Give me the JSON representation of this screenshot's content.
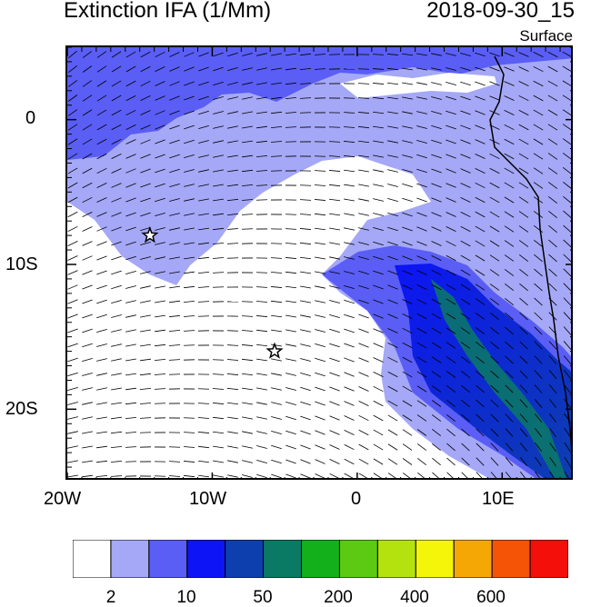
{
  "header": {
    "title": "Extinction IFA (1/Mm)",
    "timestamp": "2018-09-30_15",
    "level": "Surface"
  },
  "map": {
    "projection": "cylindrical-equidistant",
    "lon_range": [
      -20,
      15
    ],
    "lat_range": [
      -25,
      5
    ],
    "coastline_color": "#000000",
    "wind_vectors": "wind barbs overlay",
    "markers": [
      {
        "name": "star-marker",
        "lon": -14.3,
        "lat": -8.0
      },
      {
        "name": "star-marker",
        "lon": -5.7,
        "lat": -16.0
      }
    ]
  },
  "axes": {
    "x_ticks": [
      "20W",
      "10W",
      "0",
      "10E"
    ],
    "y_ticks": [
      "0",
      "10S",
      "20S"
    ]
  },
  "colorbar": {
    "colors": [
      "#ffffff",
      "#a5a8f6",
      "#5a5ef5",
      "#0d14f5",
      "#0d3fae",
      "#0a7a64",
      "#14b01c",
      "#5cca12",
      "#b4e20f",
      "#f5f50a",
      "#f5a805",
      "#f55305",
      "#f50f0a"
    ],
    "labels": [
      "2",
      "10",
      "50",
      "200",
      "400",
      "600"
    ]
  }
}
